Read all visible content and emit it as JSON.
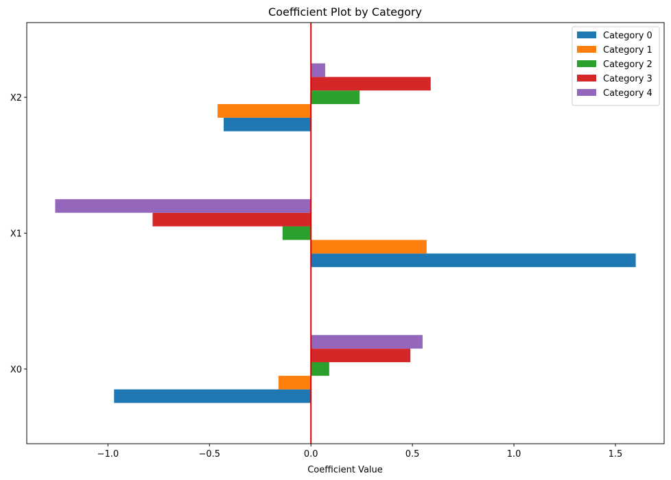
{
  "chart_data": {
    "type": "bar",
    "orientation": "horizontal",
    "title": "Coefficient Plot by Category",
    "xlabel": "Coefficient Value",
    "ylabel": "",
    "categories": [
      "X0",
      "X1",
      "X2"
    ],
    "series": [
      {
        "name": "Category 0",
        "color": "#1f77b4",
        "values": [
          -0.97,
          1.6,
          -0.43
        ]
      },
      {
        "name": "Category 1",
        "color": "#ff7f0e",
        "values": [
          -0.16,
          0.57,
          -0.46
        ]
      },
      {
        "name": "Category 2",
        "color": "#2ca02c",
        "values": [
          0.09,
          -0.14,
          0.24
        ]
      },
      {
        "name": "Category 3",
        "color": "#d62728",
        "values": [
          0.49,
          -0.78,
          0.59
        ]
      },
      {
        "name": "Category 4",
        "color": "#9467bd",
        "values": [
          0.55,
          -1.26,
          0.07
        ]
      }
    ],
    "xlim": [
      -1.4,
      1.74
    ],
    "xticks": [
      -1.0,
      -0.5,
      0.0,
      0.5,
      1.0,
      1.5
    ],
    "xtick_labels": [
      "−1.0",
      "−0.5",
      "0.0",
      "0.5",
      "1.0",
      "1.5"
    ],
    "reference_line": {
      "x": 0,
      "color": "#e00000"
    },
    "grid": false,
    "legend_position": "upper-right"
  }
}
